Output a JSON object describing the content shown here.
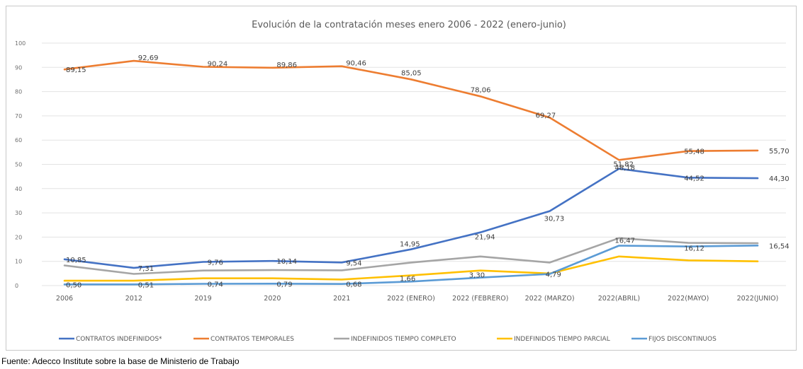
{
  "source_note": "Fuente: Adecco Institute sobre la base de Ministerio de Trabajo",
  "chart_data": {
    "type": "line",
    "title": "Evolución de la contratación meses enero 2006 - 2022 (enero-junio)",
    "xlabel": "",
    "ylabel": "",
    "ylim": [
      0,
      100
    ],
    "yticks": [
      "0",
      "10",
      "20",
      "30",
      "40",
      "50",
      "60",
      "70",
      "80",
      "90",
      "100"
    ],
    "grid": true,
    "legend_position": "bottom",
    "categories": [
      "2006",
      "2012",
      "2019",
      "2020",
      "2021",
      "2022 (ENERO)",
      "2022 (FEBRERO)",
      "2022 (MARZO)",
      "2022(ABRIL)",
      "2022(MAYO)",
      "2022(JUNIO)"
    ],
    "series": [
      {
        "name": "CONTRATOS INDEFINIDOS*",
        "color": "#4472c4",
        "values": [
          10.85,
          7.31,
          9.76,
          10.14,
          9.54,
          14.95,
          21.94,
          30.73,
          48.18,
          44.52,
          44.3
        ],
        "labels": [
          "10,85",
          "7,31",
          "9,76",
          "10,14",
          "9,54",
          "14,95",
          "21,94",
          "30,73",
          "48,18",
          "44,52",
          "44,30"
        ]
      },
      {
        "name": "CONTRATOS TEMPORALES",
        "color": "#ed7d31",
        "values": [
          89.15,
          92.69,
          90.24,
          89.86,
          90.46,
          85.05,
          78.06,
          69.27,
          51.82,
          55.48,
          55.7
        ],
        "labels": [
          "89,15",
          "92,69",
          "90,24",
          "89,86",
          "90,46",
          "85,05",
          "78,06",
          "69,27",
          "51,82",
          "55,48",
          "55,70"
        ]
      },
      {
        "name": "INDEFINIDOS TIEMPO COMPLETO",
        "color": "#a5a5a5",
        "values": [
          8.3,
          4.8,
          6.2,
          6.4,
          6.3,
          9.5,
          12.0,
          9.5,
          19.6,
          17.6,
          17.5
        ],
        "labels": []
      },
      {
        "name": "INDEFINIDOS TIEMPO PARCIAL",
        "color": "#ffc000",
        "values": [
          2.0,
          2.0,
          3.0,
          3.0,
          2.5,
          4.2,
          6.2,
          5.0,
          12.0,
          10.4,
          10.0
        ],
        "labels": []
      },
      {
        "name": "FIJOS DISCONTINUOS",
        "color": "#5b9bd5",
        "values": [
          0.5,
          0.51,
          0.74,
          0.79,
          0.68,
          1.66,
          3.3,
          4.79,
          16.47,
          16.12,
          16.54
        ],
        "labels": [
          "0,50",
          "0,51",
          "0,74",
          "0,79",
          "0,68",
          "1,66",
          "3,30",
          "4,79",
          "16,47",
          "16,12",
          "16,54"
        ]
      }
    ]
  }
}
